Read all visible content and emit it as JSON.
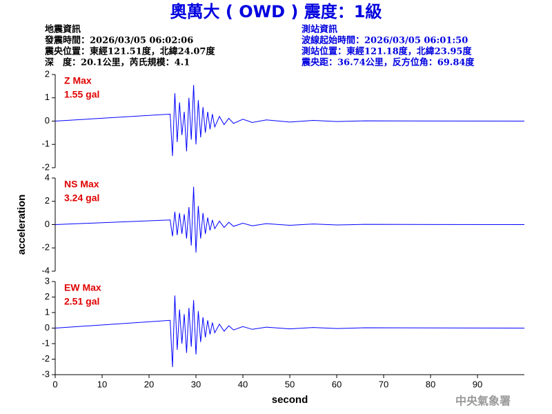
{
  "header": {
    "title": "奧萬大 ( OWD ) 震度：1級",
    "left": [
      "地震資訊",
      "發震時間：2026/03/05 06:02:06",
      "震央位置：東經121.51度，北緯24.07度",
      "深　度：20.1公里，芮氏規模：4.1"
    ],
    "right": [
      "測站資訊",
      "波線起始時間：2026/03/05 06:01:50",
      "測站位置：東經121.18度，北緯23.95度",
      "震央距：36.74公里，反方位角：69.84度"
    ],
    "footer": "中央氣象署"
  },
  "chart_data": [
    {
      "type": "line",
      "label": "Z Max",
      "max_label": "1.55 gal",
      "color": "#0000ff",
      "x": [
        0,
        24.5,
        25.0,
        25.5,
        26.0,
        26.5,
        27.0,
        27.5,
        28.0,
        28.5,
        29.0,
        29.5,
        30.0,
        30.5,
        31.0,
        31.5,
        32.0,
        32.5,
        33.0,
        33.5,
        34.0,
        35.0,
        36.0,
        37.0,
        38.0,
        40.0,
        42.0,
        45.0,
        50.0,
        55.0,
        60.0,
        66.0,
        100
      ],
      "values": [
        0,
        0.3,
        -1.5,
        1.2,
        -0.9,
        0.8,
        -0.6,
        0.4,
        -1.3,
        1.0,
        -0.8,
        1.55,
        -1.0,
        0.9,
        -0.7,
        0.6,
        -0.5,
        0.4,
        -0.35,
        0.3,
        -0.25,
        0.2,
        -0.15,
        0.12,
        -0.1,
        0.08,
        -0.06,
        0.05,
        -0.04,
        0.03,
        -0.02,
        0.01,
        0
      ],
      "xlim": [
        0,
        100
      ],
      "ylim": [
        -2,
        2
      ],
      "yticks": [
        -2,
        -1,
        0,
        1,
        2
      ]
    },
    {
      "type": "line",
      "label": "NS Max",
      "max_label": "3.24 gal",
      "color": "#0000ff",
      "ylabel": "acceleration",
      "x": [
        0,
        24.5,
        25.0,
        25.5,
        26.0,
        26.5,
        27.0,
        27.5,
        28.0,
        28.5,
        29.0,
        29.5,
        30.0,
        30.5,
        31.0,
        31.5,
        32.0,
        32.5,
        33.0,
        33.5,
        34.0,
        35.0,
        36.0,
        37.0,
        38.0,
        40.0,
        42.0,
        45.0,
        50.0,
        55.0,
        60.0,
        66.0,
        100
      ],
      "values": [
        0,
        0.4,
        -1.0,
        1.1,
        -0.9,
        1.0,
        -0.8,
        0.9,
        -1.2,
        1.5,
        -1.8,
        3.24,
        -2.4,
        1.6,
        -1.2,
        1.0,
        -0.8,
        0.6,
        -0.5,
        0.4,
        -0.35,
        0.3,
        -0.25,
        0.2,
        -0.15,
        0.12,
        -0.1,
        0.08,
        -0.06,
        0.05,
        -0.03,
        0.02,
        0
      ],
      "xlim": [
        0,
        100
      ],
      "ylim": [
        -4,
        4
      ],
      "yticks": [
        -4,
        -2,
        0,
        2,
        4
      ]
    },
    {
      "type": "line",
      "label": "EW Max",
      "max_label": "2.51 gal",
      "color": "#0000ff",
      "xlabel": "second",
      "x": [
        0,
        24.5,
        25.0,
        25.5,
        26.0,
        26.5,
        27.0,
        27.5,
        28.0,
        28.5,
        29.0,
        29.5,
        30.0,
        30.5,
        31.0,
        31.5,
        32.0,
        32.5,
        33.0,
        33.5,
        34.0,
        35.0,
        36.0,
        37.0,
        38.0,
        40.0,
        42.0,
        45.0,
        50.0,
        55.0,
        60.0,
        66.0,
        100
      ],
      "values": [
        0,
        0.5,
        -2.51,
        2.1,
        -1.4,
        1.2,
        -1.0,
        0.9,
        -1.6,
        1.3,
        -1.2,
        1.8,
        -1.7,
        1.1,
        -0.9,
        0.7,
        -0.6,
        0.5,
        -0.4,
        0.35,
        -0.3,
        0.25,
        -0.2,
        0.15,
        -0.12,
        0.1,
        -0.08,
        0.06,
        -0.05,
        0.04,
        -0.03,
        0.02,
        0
      ],
      "xlim": [
        0,
        100
      ],
      "ylim": [
        -3,
        3
      ],
      "yticks": [
        -3,
        -2,
        -1,
        0,
        1,
        2,
        3
      ],
      "xticks": [
        0,
        10,
        20,
        30,
        40,
        50,
        60,
        70,
        80,
        90
      ]
    }
  ]
}
